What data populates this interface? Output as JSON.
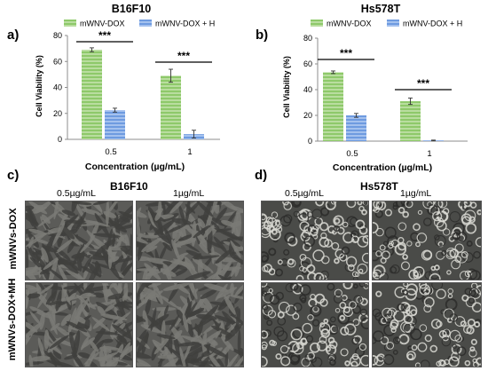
{
  "colors": {
    "series1": "#8ec96a",
    "series1_stripe": "#b9dd9f",
    "series2": "#6e9be0",
    "series2_stripe": "#a4c1ee",
    "axis": "#8c8c8c"
  },
  "chart_data": [
    {
      "panel": "a)",
      "type": "bar",
      "title": "B16F10",
      "xlabel": "Concentration (µg/mL)",
      "ylabel": "Cell Viability (%)",
      "ylim": [
        0,
        80
      ],
      "yticks": [
        "0",
        "20",
        "40",
        "60",
        "80"
      ],
      "categories": [
        "0.5",
        "1"
      ],
      "series": [
        {
          "name": "mWNV-DOX",
          "values": [
            69,
            49
          ],
          "errors": [
            1.5,
            5
          ]
        },
        {
          "name": "mWNV-DOX + H",
          "values": [
            22.5,
            4
          ],
          "errors": [
            1.5,
            3
          ]
        }
      ],
      "significance": [
        "***",
        "***"
      ],
      "legend": "top"
    },
    {
      "panel": "b)",
      "type": "bar",
      "title": "Hs578T",
      "xlabel": "Concentration (µg/mL)",
      "ylabel": "Cell Viability (%)",
      "ylim": [
        0,
        80
      ],
      "yticks": [
        "0",
        "20",
        "40",
        "60",
        "80"
      ],
      "categories": [
        "0.5",
        "1"
      ],
      "series": [
        {
          "name": "mWNV-DOX",
          "values": [
            53.5,
            31
          ],
          "errors": [
            1,
            2.5
          ]
        },
        {
          "name": "mWNV-DOX + H",
          "values": [
            20,
            0.5
          ],
          "errors": [
            1.5,
            0.3
          ]
        }
      ],
      "significance": [
        "***",
        "***"
      ],
      "legend": "top"
    }
  ],
  "micrographs": {
    "left": {
      "panel": "c)",
      "title": "B16F10",
      "columns": [
        "0.5µg/mL",
        "1µg/mL"
      ]
    },
    "right": {
      "panel": "d)",
      "title": "Hs578T",
      "columns": [
        "0.5µg/mL",
        "1µg/mL"
      ]
    },
    "rows": [
      "mWNVs-DOX",
      "mWNVs-DOX+MH"
    ]
  }
}
